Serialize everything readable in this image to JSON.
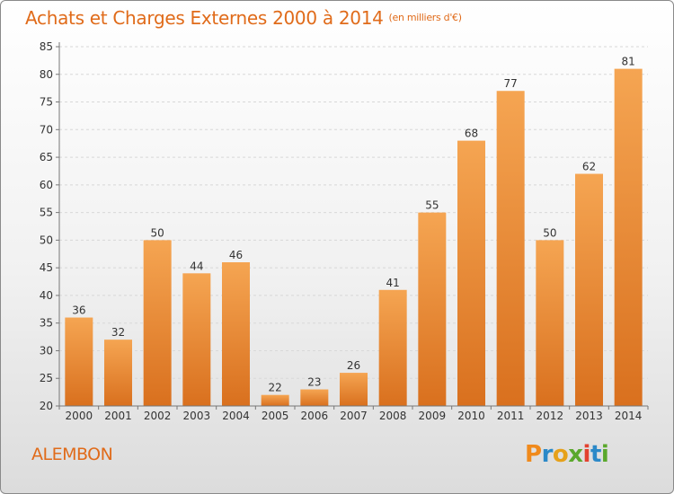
{
  "title": "Achats et Charges Externes 2000 à 2014",
  "unit": "(en milliers d'€)",
  "commune": "ALEMBON",
  "logo": {
    "letters": [
      "P",
      "r",
      "o",
      "x",
      "i",
      "t",
      "i"
    ],
    "colors": [
      "#f08a1c",
      "#2b89c8",
      "#e6a11a",
      "#5aa82c",
      "#e3412f",
      "#2b89c8",
      "#5aa82c"
    ]
  },
  "colors": {
    "accent": "#e06b1a",
    "bar_top": "#f5a552",
    "bar_bottom": "#d9701e"
  },
  "chart_data": {
    "type": "bar",
    "categories": [
      "2000",
      "2001",
      "2002",
      "2003",
      "2004",
      "2005",
      "2006",
      "2007",
      "2008",
      "2009",
      "2010",
      "2011",
      "2012",
      "2013",
      "2014"
    ],
    "values": [
      36,
      32,
      50,
      44,
      46,
      22,
      23,
      26,
      41,
      55,
      68,
      77,
      50,
      62,
      81
    ],
    "ylim": [
      20,
      85
    ],
    "yticks": [
      20,
      25,
      30,
      35,
      40,
      45,
      50,
      55,
      60,
      65,
      70,
      75,
      80,
      85
    ],
    "grid": true,
    "title": "Achats et Charges Externes 2000 à 2014",
    "xlabel": "",
    "ylabel": ""
  }
}
